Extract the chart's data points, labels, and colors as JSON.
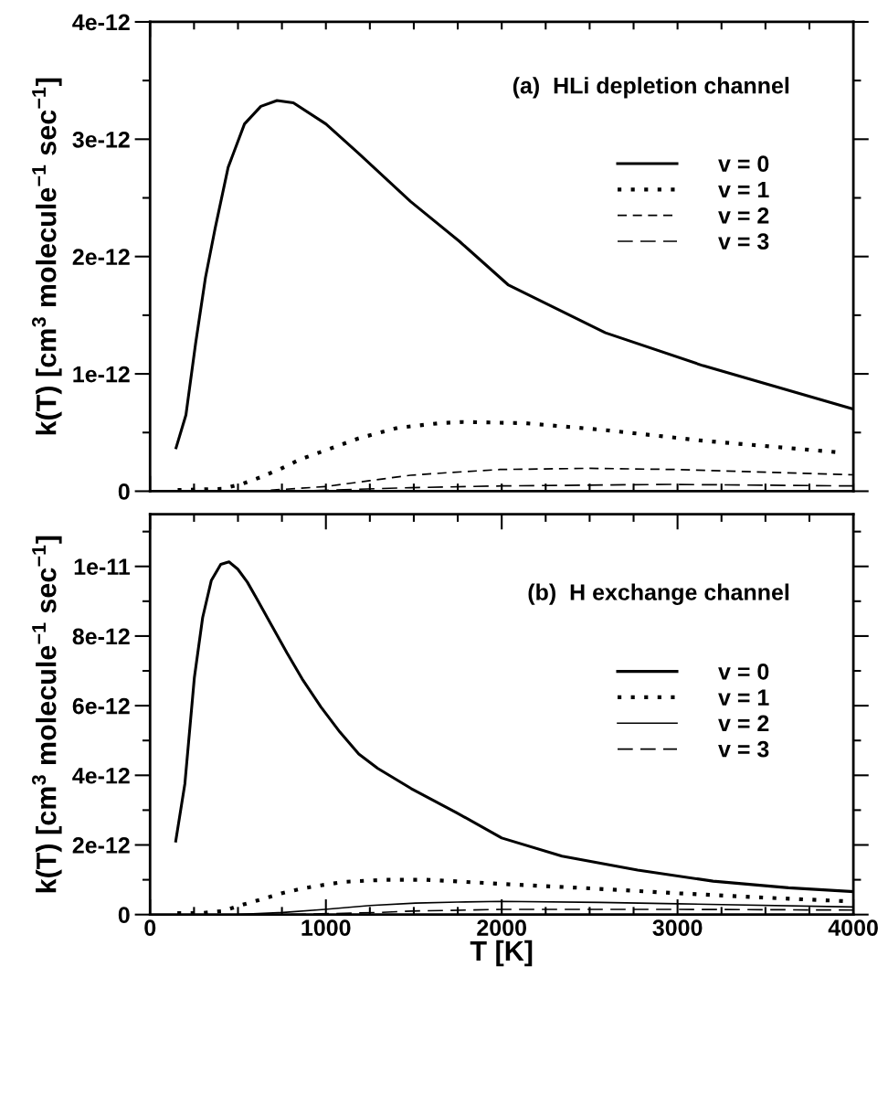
{
  "chart_data": [
    {
      "type": "line",
      "ylabel": "k(T) [cm$^{3}$ molecule$^{−1}$ sec$^{−1}$]",
      "annotations": [
        "(a)  HLi depletion channel"
      ],
      "legend": "top right",
      "tick_labels": "y",
      "xlim": [
        0,
        4000
      ],
      "xticks": [
        0,
        {
          "value": 250,
          "label": null
        },
        {
          "value": 500,
          "label": null
        },
        {
          "value": 750,
          "label": null
        },
        {
          "value": 1000,
          "label": null
        },
        {
          "value": 1250,
          "label": null
        },
        {
          "value": 1500,
          "label": null
        },
        {
          "value": 1750,
          "label": null
        },
        {
          "value": 2000,
          "label": null
        },
        {
          "value": 2250,
          "label": null
        },
        {
          "value": 2500,
          "label": null
        },
        {
          "value": 2750,
          "label": null
        },
        {
          "value": 3000,
          "label": null
        },
        {
          "value": 3250,
          "label": null
        },
        {
          "value": 3500,
          "label": null
        },
        {
          "value": 3750,
          "label": null
        },
        {
          "value": 4000,
          "label": null
        }
      ],
      "ylim": [
        0,
        4e-12
      ],
      "yticks": [
        0,
        {
          "value": 5e-13,
          "label": null
        },
        {
          "value": 1e-12,
          "label": "1e-12"
        },
        {
          "value": 1.5e-12,
          "label": null
        },
        {
          "value": 2e-12,
          "label": "2e-12"
        },
        {
          "value": 2.5e-12,
          "label": null
        },
        {
          "value": 3e-12,
          "label": "3e-12"
        },
        {
          "value": 3.5e-12,
          "label": null
        },
        {
          "value": 4e-12,
          "label": "4e-12"
        }
      ],
      "series": [
        {
          "name": "v = 0",
          "color": "#000000",
          "line_style": "solid",
          "x": [
            148,
            204,
            259,
            315,
            370,
            444,
            537,
            630,
            722,
            815,
            1000,
            1185,
            1481,
            1759,
            2036,
            2590,
            3145,
            4000
          ],
          "values": [
            3.7e-13,
            6.5e-13,
            1.26e-12,
            1.82e-12,
            2.24e-12,
            2.76e-12,
            3.13e-12,
            3.28e-12,
            3.33e-12,
            3.31e-12,
            3.13e-12,
            2.88e-12,
            2.47e-12,
            2.13e-12,
            1.76e-12,
            1.35e-12,
            1.07e-12,
            7e-13
          ]
        },
        {
          "name": "v = 1",
          "color": "#000000",
          "line_style": "dotted",
          "x": [
            157,
            407,
            519,
            630,
            741,
            852,
            963,
            1185,
            1407,
            1648,
            1777,
            2129,
            2594,
            3147,
            3925
          ],
          "values": [
            1e-14,
            2e-14,
            6e-14,
            1.2e-13,
            1.9e-13,
            2.7e-13,
            3.3e-13,
            4.5e-13,
            5.4e-13,
            5.8e-13,
            5.9e-13,
            5.8e-13,
            5.2e-13,
            4.3e-13,
            3.3e-13
          ]
        },
        {
          "name": "v = 2",
          "color": "#000000",
          "line_style": "dashed",
          "x": [
            600,
            1000,
            1250,
            1481,
            1713,
            1990,
            2498,
            2993,
            4000
          ],
          "values": [
            0,
            4e-14,
            9e-14,
            1.36e-13,
            1.6e-13,
            1.85e-13,
            1.95e-13,
            1.85e-13,
            1.4e-13
          ]
        },
        {
          "name": "v = 3",
          "color": "#000000",
          "line_style": "dashed",
          "x": [
            800,
            1481,
            2000,
            2960,
            4000
          ],
          "values": [
            0,
            3e-14,
            4.5e-14,
            5.8e-14,
            4.5e-14
          ]
        }
      ]
    },
    {
      "type": "line",
      "xlabel": "T [K]",
      "ylabel": "k(T) [cm$^{3}$ molecule$^{−1}$ sec$^{−1}$]",
      "annotations": [
        "(b)  H exchange channel"
      ],
      "legend": "top right",
      "xlim": [
        0,
        4000
      ],
      "xticks": [
        0,
        {
          "value": 250,
          "label": null
        },
        {
          "value": 500,
          "label": null
        },
        {
          "value": 750,
          "label": null
        },
        1000,
        {
          "value": 1250,
          "label": null
        },
        {
          "value": 1500,
          "label": null
        },
        {
          "value": 1750,
          "label": null
        },
        2000,
        {
          "value": 2250,
          "label": null
        },
        {
          "value": 2500,
          "label": null
        },
        {
          "value": 2750,
          "label": null
        },
        3000,
        {
          "value": 3250,
          "label": null
        },
        {
          "value": 3500,
          "label": null
        },
        {
          "value": 3750,
          "label": null
        },
        4000
      ],
      "ylim": [
        0,
        1.15e-11
      ],
      "yticks": [
        0,
        {
          "value": 1e-12,
          "label": null
        },
        {
          "value": 2e-12,
          "label": "2e-12"
        },
        {
          "value": 3e-12,
          "label": null
        },
        {
          "value": 4e-12,
          "label": "4e-12"
        },
        {
          "value": 5e-12,
          "label": null
        },
        {
          "value": 6e-12,
          "label": "6e-12"
        },
        {
          "value": 7e-12,
          "label": null
        },
        {
          "value": 8e-12,
          "label": "8e-12"
        },
        {
          "value": 9e-12,
          "label": null
        },
        {
          "value": 1e-11,
          "label": "1e-11"
        },
        {
          "value": 1.1e-11,
          "label": null
        }
      ],
      "series": [
        {
          "name": "v = 0",
          "color": "#000000",
          "line_style": "solid",
          "x": [
            146,
            198,
            252,
            299,
            348,
            402,
            449,
            499,
            553,
            606,
            692,
            779,
            865,
            972,
            1080,
            1187,
            1295,
            1485,
            1742,
            2000,
            2343,
            2773,
            3202,
            3631,
            4000
          ],
          "values": [
            2.11e-12,
            3.76e-12,
            6.81e-12,
            8.53e-12,
            9.59e-12,
            1.006e-11,
            1.013e-11,
            9.92e-12,
            9.55e-12,
            9.08e-12,
            8.3e-12,
            7.51e-12,
            6.77e-12,
            5.96e-12,
            5.24e-12,
            4.61e-12,
            4.2e-12,
            3.62e-12,
            2.93e-12,
            2.2e-12,
            1.68e-12,
            1.28e-12,
            9.6e-13,
            7.7e-13,
            6.6e-13
          ]
        },
        {
          "name": "v = 1",
          "color": "#000000",
          "line_style": "dotted",
          "x": [
            155,
            284,
            413,
            510,
            628,
            746,
            865,
            972,
            1101,
            1338,
            1571,
            2043,
            2515,
            3009,
            3481,
            3975
          ],
          "values": [
            4e-14,
            4e-14,
            1e-13,
            2.6e-13,
            4.3e-13,
            6.1e-13,
            7.5e-13,
            8.4e-13,
            9.4e-13,
            1e-12,
            1e-12,
            8.7e-13,
            7.5e-13,
            6.1e-13,
            4.9e-13,
            3.8e-13
          ]
        },
        {
          "name": "v = 2",
          "color": "#000000",
          "line_style": "solid",
          "x": [
            500,
            757,
            994,
            1252,
            1510,
            1748,
            2000,
            2558,
            3000,
            4000
          ],
          "values": [
            0,
            6e-14,
            1.5e-13,
            2.6e-13,
            3.3e-13,
            3.6e-13,
            3.8e-13,
            3.5e-13,
            3.1e-13,
            2.2e-13
          ]
        },
        {
          "name": "v = 3",
          "color": "#000000",
          "line_style": "dashed",
          "x": [
            800,
            1295,
            1485,
            2000,
            3000,
            4000
          ],
          "values": [
            0,
            6e-14,
            1e-13,
            1.5e-13,
            1.5e-13,
            1.3e-13
          ]
        }
      ]
    }
  ]
}
